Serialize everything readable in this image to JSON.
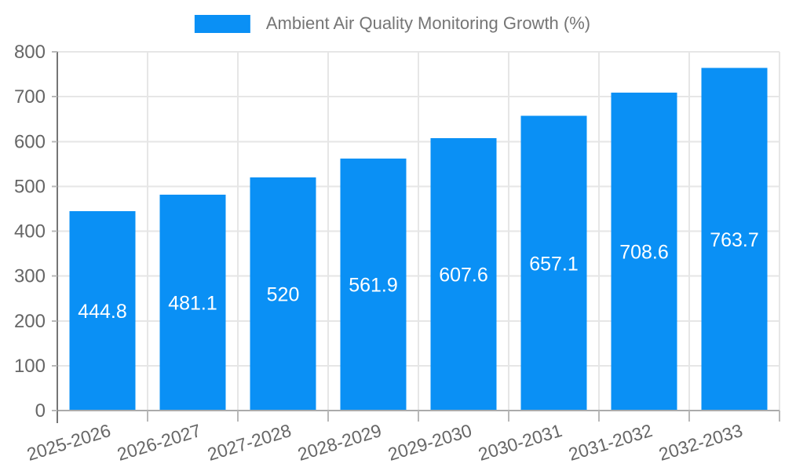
{
  "legend": {
    "label": "Ambient Air Quality Monitoring Growth (%)"
  },
  "colors": {
    "bar": "#0a90f5",
    "grid": "#e6e6e6",
    "axis_x": "#ababab",
    "axis_y": "#757575",
    "tick": "#b8b8b8",
    "tick_label": "#666666",
    "value_label": "#ffffff",
    "legend_text": "#757575",
    "background": "#ffffff"
  },
  "chart_data": {
    "type": "bar",
    "title": "Ambient Air Quality Monitoring Growth (%)",
    "categories": [
      "2025-2026",
      "2026-2027",
      "2027-2028",
      "2028-2029",
      "2029-2030",
      "2030-2031",
      "2031-2032",
      "2032-2033"
    ],
    "values": [
      444.8,
      481.1,
      520,
      561.9,
      607.6,
      657.1,
      708.6,
      763.7
    ],
    "data_labels": [
      "444.8",
      "481.1",
      "520",
      "561.9",
      "607.6",
      "657.1",
      "708.6",
      "763.7"
    ],
    "xlabel": "",
    "ylabel": "",
    "ylim": [
      0,
      800
    ],
    "y_ticks": [
      0,
      100,
      200,
      300,
      400,
      500,
      600,
      700,
      800
    ],
    "grid": true,
    "legend_position": "top-center",
    "value_label_position": "inside-center",
    "x_label_rotation_deg": -17
  }
}
